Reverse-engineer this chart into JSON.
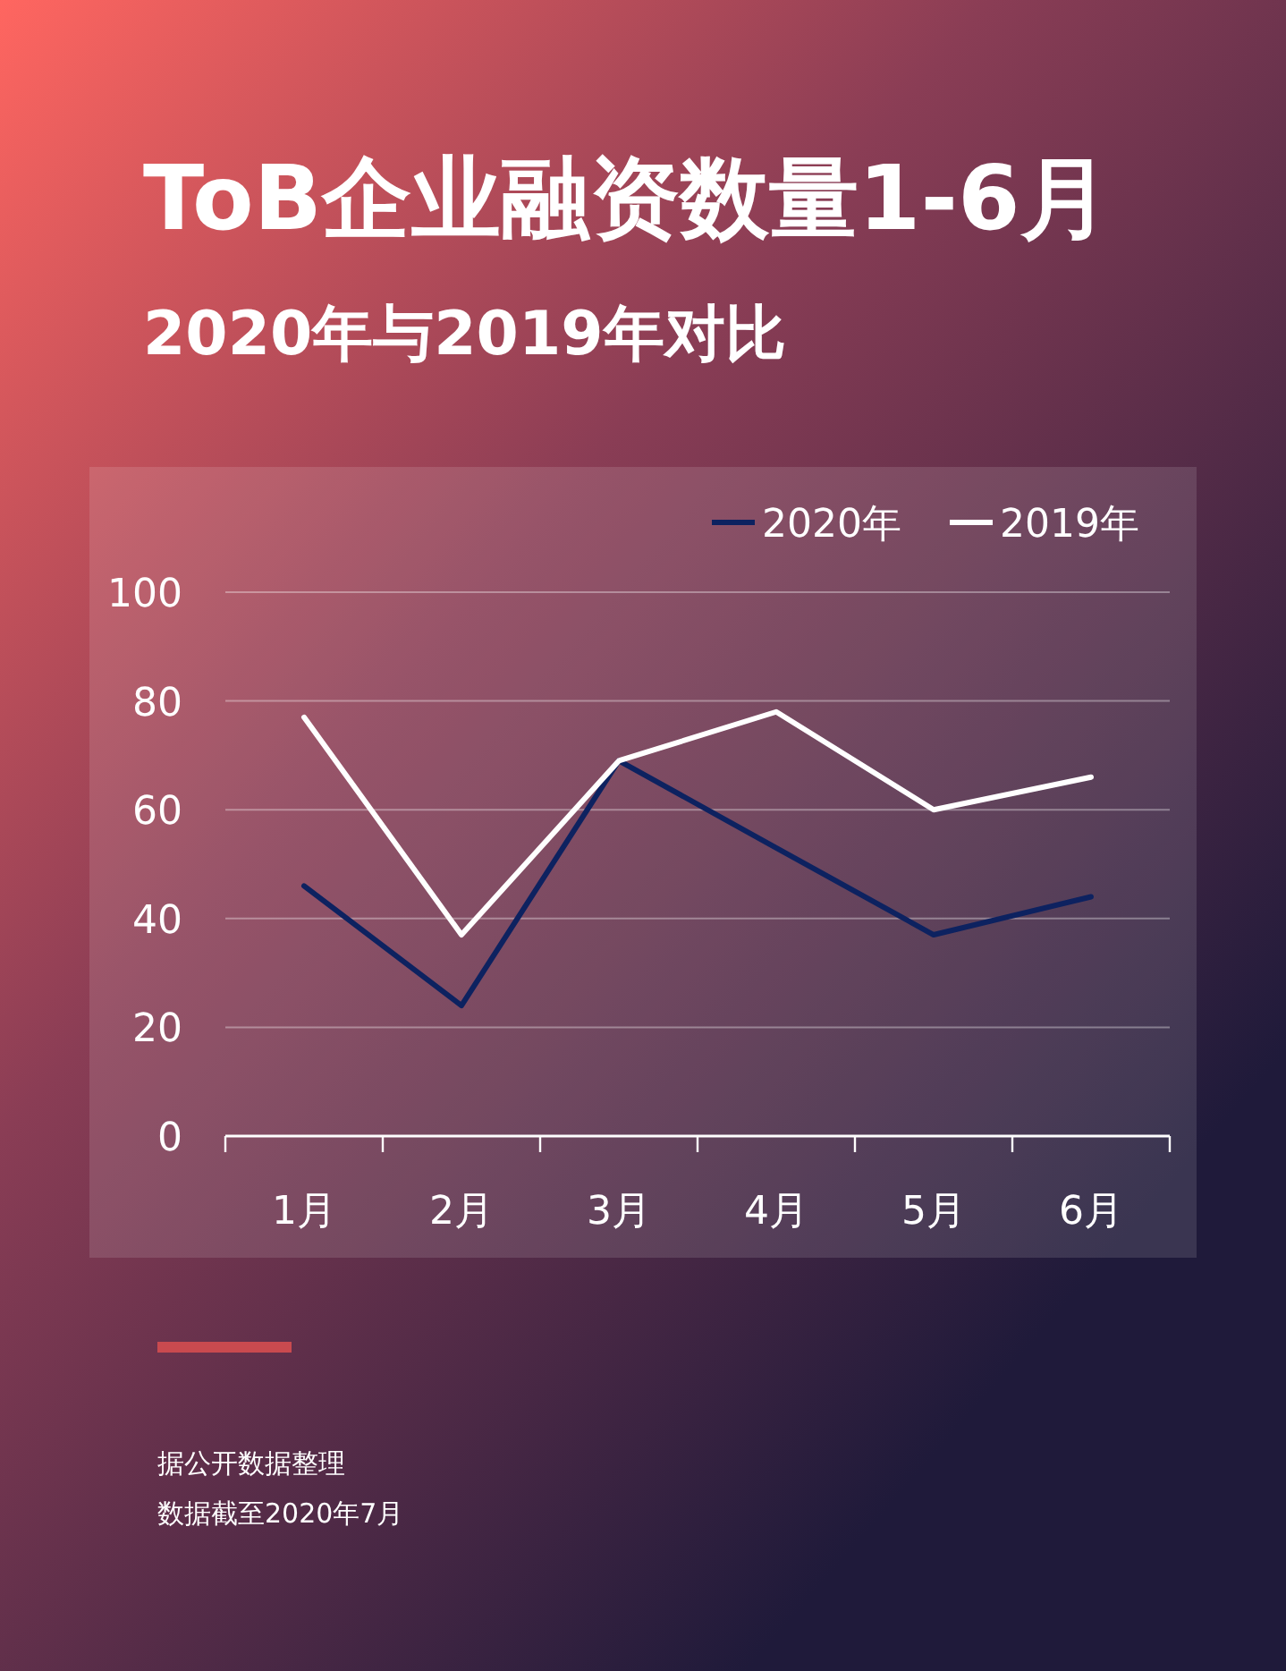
{
  "chart_data": {
    "type": "line",
    "title": "ToB企业融资数量1-6月",
    "subtitle": "2020年与2019年对比",
    "categories": [
      "1月",
      "2月",
      "3月",
      "4月",
      "5月",
      "6月"
    ],
    "series": [
      {
        "name": "2020年",
        "color": "#0d2260",
        "values": [
          46,
          24,
          69,
          53,
          37,
          44
        ]
      },
      {
        "name": "2019年",
        "color": "#ffffff",
        "values": [
          77,
          37,
          69,
          78,
          60,
          66
        ]
      }
    ],
    "ylim": [
      0,
      100
    ],
    "yticks": [
      0,
      20,
      40,
      60,
      80,
      100
    ],
    "grid": "y",
    "legend": "top right",
    "annotations": [
      "据公开数据整理",
      "数据截至2020年7月"
    ]
  }
}
